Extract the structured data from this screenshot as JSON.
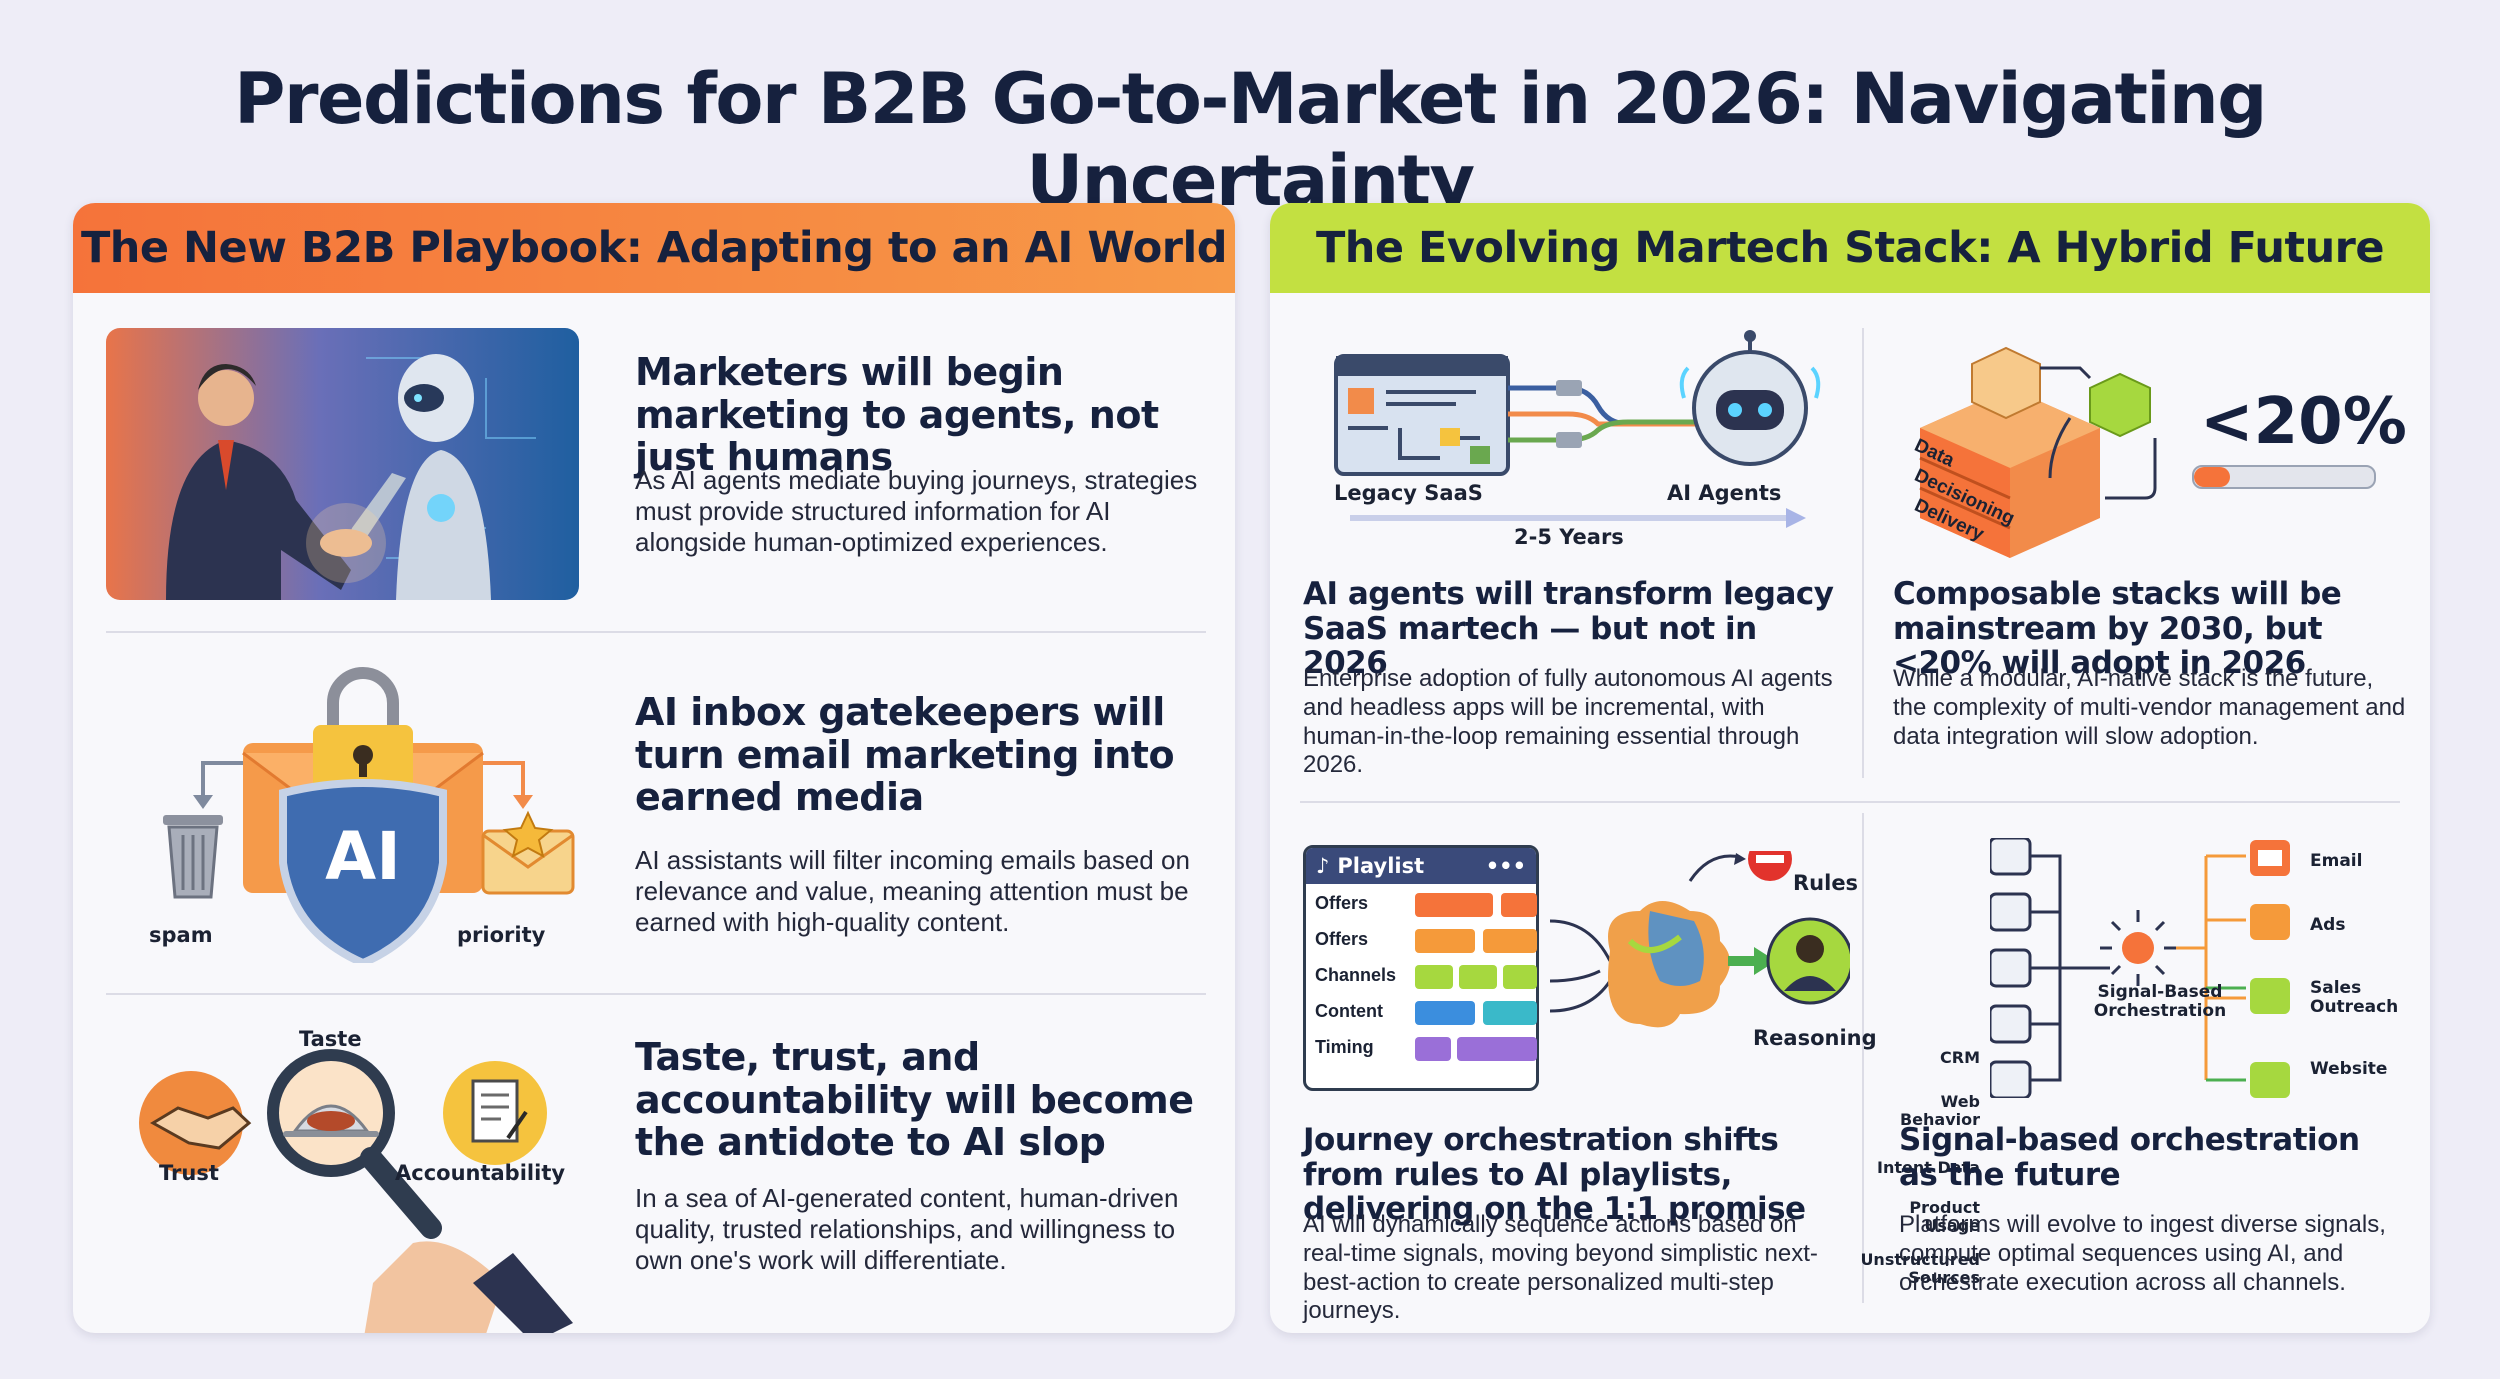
{
  "title": "Predictions for B2B Go-to-Market in 2026: Navigating Uncertainty",
  "left": {
    "header": "The New B2B Playbook: Adapting to an AI World",
    "items": [
      {
        "heading": "Marketers will begin marketing to agents, not just humans",
        "body": "As AI agents mediate buying journeys, strategies must provide structured information for AI alongside human-optimized experiences."
      },
      {
        "heading": "AI inbox gatekeepers will turn email marketing into earned media",
        "body": "AI assistants will filter incoming emails based on relevance and value, meaning attention must be earned with high-quality content.",
        "labels": {
          "shield": "AI",
          "spam": "spam",
          "priority": "priority"
        }
      },
      {
        "heading": "Taste, trust, and accountability will become the antidote to AI slop",
        "body": "In a sea of AI-generated content, human-driven quality, trusted relationships, and willingness to own one's work will differentiate.",
        "labels": {
          "taste": "Taste",
          "trust": "Trust",
          "accountability": "Accountability"
        }
      }
    ]
  },
  "right": {
    "header": "The Evolving Martech Stack: A Hybrid Future",
    "items": [
      {
        "heading": "AI agents will transform legacy SaaS martech — but not in 2026",
        "body": "Enterprise adoption of fully autonomous AI agents and headless apps will be incremental, with human-in-the-loop remaining essential through 2026.",
        "labels": {
          "legacy": "Legacy SaaS",
          "agents": "AI Agents",
          "years": "2-5 Years"
        }
      },
      {
        "heading": "Composable stacks will be mainstream by 2030, but <20% will adopt in 2026",
        "body": "While a modular, AI-native stack is the future, the complexity of multi-vendor management and data integration will slow adoption.",
        "labels": {
          "stat": "<20%",
          "layers": [
            "Data",
            "Decisioning",
            "Delivery"
          ]
        },
        "adoption_fraction": 0.2
      },
      {
        "heading": "Journey orchestration shifts from rules to AI playlists, delivering on the 1:1 promise",
        "body": "AI will dynamically sequence actions based on real-time signals, moving beyond simplistic next-best-action to create personalized multi-step journeys.",
        "labels": {
          "playlist": "Playlist",
          "dots": "•••",
          "rows": [
            "Offers",
            "Offers",
            "Channels",
            "Content",
            "Timing"
          ],
          "rules": "Rules",
          "reasoning": "Reasoning"
        }
      },
      {
        "heading": "Signal-based orchestration as the future",
        "body": "Platforms will evolve to ingest diverse signals, compute optimal sequences using AI, and orchestrate execution across all channels.",
        "labels": {
          "inputs": [
            "CRM",
            "Web Behavior",
            "Intent Data",
            "Product Usage",
            "Unstructured Sources"
          ],
          "hub": "Signal-Based Orchestration",
          "outputs": [
            "Email",
            "Ads",
            "Sales Outreach",
            "Website"
          ]
        }
      }
    ]
  },
  "colors": {
    "orange": "#f5733a",
    "lime": "#c3e041",
    "navy": "#16213e"
  }
}
